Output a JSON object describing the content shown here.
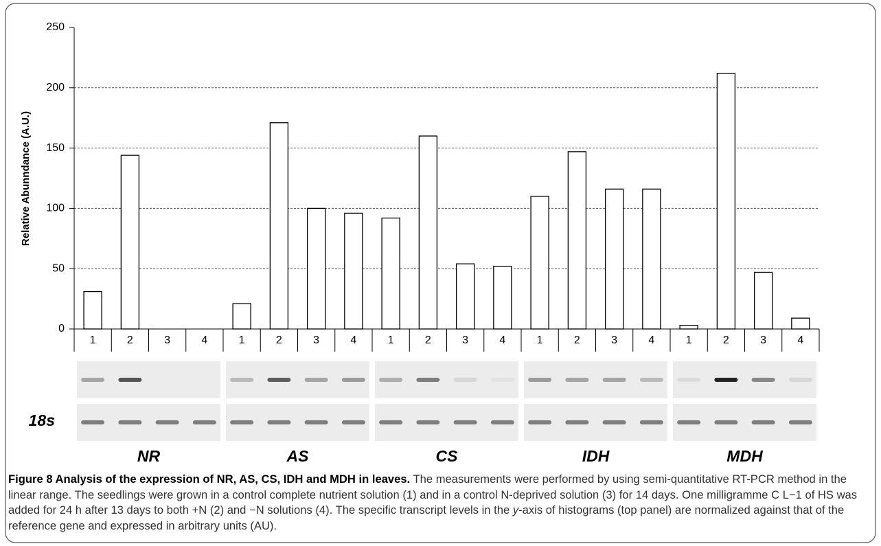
{
  "chart_data": {
    "type": "bar",
    "y_label": "Relative Abunndance (A.U.)",
    "categories": [
      "1",
      "2",
      "3",
      "4",
      "1",
      "2",
      "3",
      "4",
      "1",
      "2",
      "3",
      "4",
      "1",
      "2",
      "3",
      "4",
      "1",
      "2",
      "3",
      "4"
    ],
    "values": [
      31,
      144,
      0,
      0,
      21,
      171,
      100,
      96,
      92,
      160,
      54,
      52,
      110,
      147,
      116,
      116,
      3,
      212,
      47,
      9
    ],
    "color": "#ffffff",
    "ylim": [
      0,
      250
    ],
    "yticks": [
      0,
      50,
      100,
      150,
      200,
      250
    ],
    "grid": true,
    "groups": [
      "NR",
      "AS",
      "CS",
      "IDH",
      "MDH"
    ],
    "gel_label": "18s"
  },
  "caption": {
    "title": "Figure 8 Analysis of the expression of NR, AS, CS, IDH and MDH in leaves.",
    "text": [
      " The measurements were performed by using semi-quantitative RT-PCR method in the linear range. The seedlings were grown in a control complete nutrient solution (1) and in a control N-deprived solution (3) for 14 days. One milligramme C L−1 of HS was added for 24 h after 13 days to both +N (2) and −N solutions (4). The specific transcript levels in the ",
      "y",
      "-axis of histograms (top panel) are normalized against that of the reference gene and expressed in arbitrary units (AU)."
    ]
  }
}
